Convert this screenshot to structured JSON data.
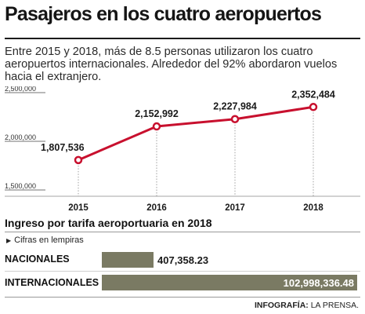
{
  "title": "Pasajeros en los cuatro aeropuertos",
  "intro": "Entre 2015 y 2018, más de 8.5 personas utilizaron los cuatro aeropuertos internacionales. Alrededor del 92% abordaron vuelos hacia el extranjero.",
  "colors": {
    "line": "#c8102e",
    "bar": "#7a7a63"
  },
  "chart_data": [
    {
      "type": "line",
      "x": [
        "2015",
        "2016",
        "2017",
        "2018"
      ],
      "values": [
        1807536,
        2152992,
        2227984,
        2352484
      ],
      "data_labels": [
        "1,807,536",
        "2,152,992",
        "2,227,984",
        "2,352,484"
      ],
      "y_ticks": [
        1500000,
        2000000,
        2500000
      ],
      "y_tick_labels": [
        "1,500,000",
        "2,000,000",
        "2,500,000"
      ],
      "ylim": [
        1500000,
        2500000
      ],
      "grid": false
    },
    {
      "type": "bar",
      "title": "Ingreso por tarifa aeroportuaria en 2018",
      "note": "Cifras en lempiras",
      "categories": [
        "NACIONALES",
        "INTERNACIONALES"
      ],
      "values": [
        407358.23,
        102998336.48
      ],
      "value_labels": [
        "407,358.23",
        "102,998,336.48"
      ]
    }
  ],
  "footer": {
    "label": "INFOGRAFÍA:",
    "source": "LA PRENSA."
  }
}
